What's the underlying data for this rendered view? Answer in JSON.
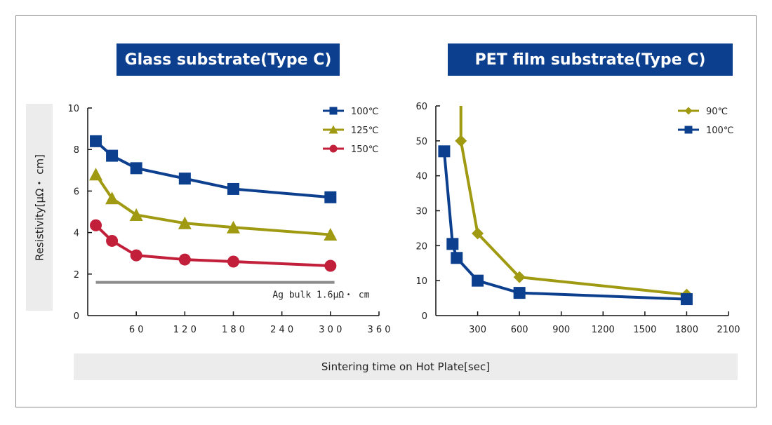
{
  "titles": {
    "left": "Glass substrate(Type C)",
    "right": "PET film substrate(Type C)"
  },
  "ylabel": "Resistivity[μΩ・ cm]",
  "xlabel": "Sintering time on Hot Plate[sec]",
  "colors": {
    "blue": "#0d3f8f",
    "olive": "#a09a12",
    "red": "#c21f3a",
    "ref_line": "#8c8c8c",
    "title_bg": "#0d3f8f"
  },
  "chart_data": [
    {
      "type": "line",
      "title": "Glass substrate(Type C)",
      "xlabel": "Sintering time on Hot Plate[sec]",
      "ylabel": "Resistivity[μΩ・ cm]",
      "xlim": [
        0,
        360
      ],
      "ylim": [
        0,
        10
      ],
      "x_ticks": [
        60,
        120,
        180,
        240,
        300,
        360
      ],
      "x_tick_labels": [
        "6 0",
        "1 2 0",
        "1 8 0",
        "2 4 0",
        "3 0 0",
        "3 6 0"
      ],
      "y_ticks": [
        0,
        2,
        4,
        6,
        8,
        10
      ],
      "y_tick_labels": [
        "0",
        "2",
        "4",
        "6",
        "8",
        "10"
      ],
      "legend_position": "top-right",
      "series": [
        {
          "name": "100℃",
          "marker": "square",
          "color": "#0d3f8f",
          "x": [
            10,
            30,
            60,
            120,
            180,
            300
          ],
          "y": [
            8.4,
            7.7,
            7.1,
            6.6,
            6.1,
            5.7
          ]
        },
        {
          "name": "125℃",
          "marker": "triangle",
          "color": "#a09a12",
          "x": [
            10,
            30,
            60,
            120,
            180,
            300
          ],
          "y": [
            6.8,
            5.65,
            4.85,
            4.45,
            4.25,
            3.9
          ]
        },
        {
          "name": "150℃",
          "marker": "circle",
          "color": "#c21f3a",
          "x": [
            10,
            30,
            60,
            120,
            180,
            300
          ],
          "y": [
            4.35,
            3.6,
            2.9,
            2.7,
            2.6,
            2.4
          ]
        }
      ],
      "reference_line": {
        "label": "Ag bulk 1.6μΩ・ cm",
        "y": 1.6,
        "x_range": [
          10,
          305
        ]
      }
    },
    {
      "type": "line",
      "title": "PET film substrate(Type C)",
      "xlabel": "Sintering time on Hot Plate[sec]",
      "ylabel": "Resistivity[μΩ・ cm]",
      "xlim": [
        0,
        2100
      ],
      "ylim": [
        0,
        60
      ],
      "x_ticks": [
        300,
        600,
        900,
        1200,
        1500,
        1800,
        2100
      ],
      "x_tick_labels": [
        "300",
        "600",
        "900",
        "1200",
        "1500",
        "1800",
        "2100"
      ],
      "y_ticks": [
        0,
        10,
        20,
        30,
        40,
        50,
        60
      ],
      "y_tick_labels": [
        "0",
        "10",
        "20",
        "30",
        "40",
        "50",
        "60"
      ],
      "legend_position": "top-right",
      "series": [
        {
          "name": "90℃",
          "marker": "diamond",
          "color": "#a09a12",
          "x": [
            180,
            180,
            300,
            600,
            1800
          ],
          "y": [
            60,
            50,
            23.5,
            11,
            6
          ]
        },
        {
          "name": "100℃",
          "marker": "square",
          "color": "#0d3f8f",
          "x": [
            60,
            120,
            150,
            300,
            600,
            1800
          ],
          "y": [
            47,
            20.5,
            16.5,
            10,
            6.5,
            4.7
          ]
        }
      ]
    }
  ]
}
